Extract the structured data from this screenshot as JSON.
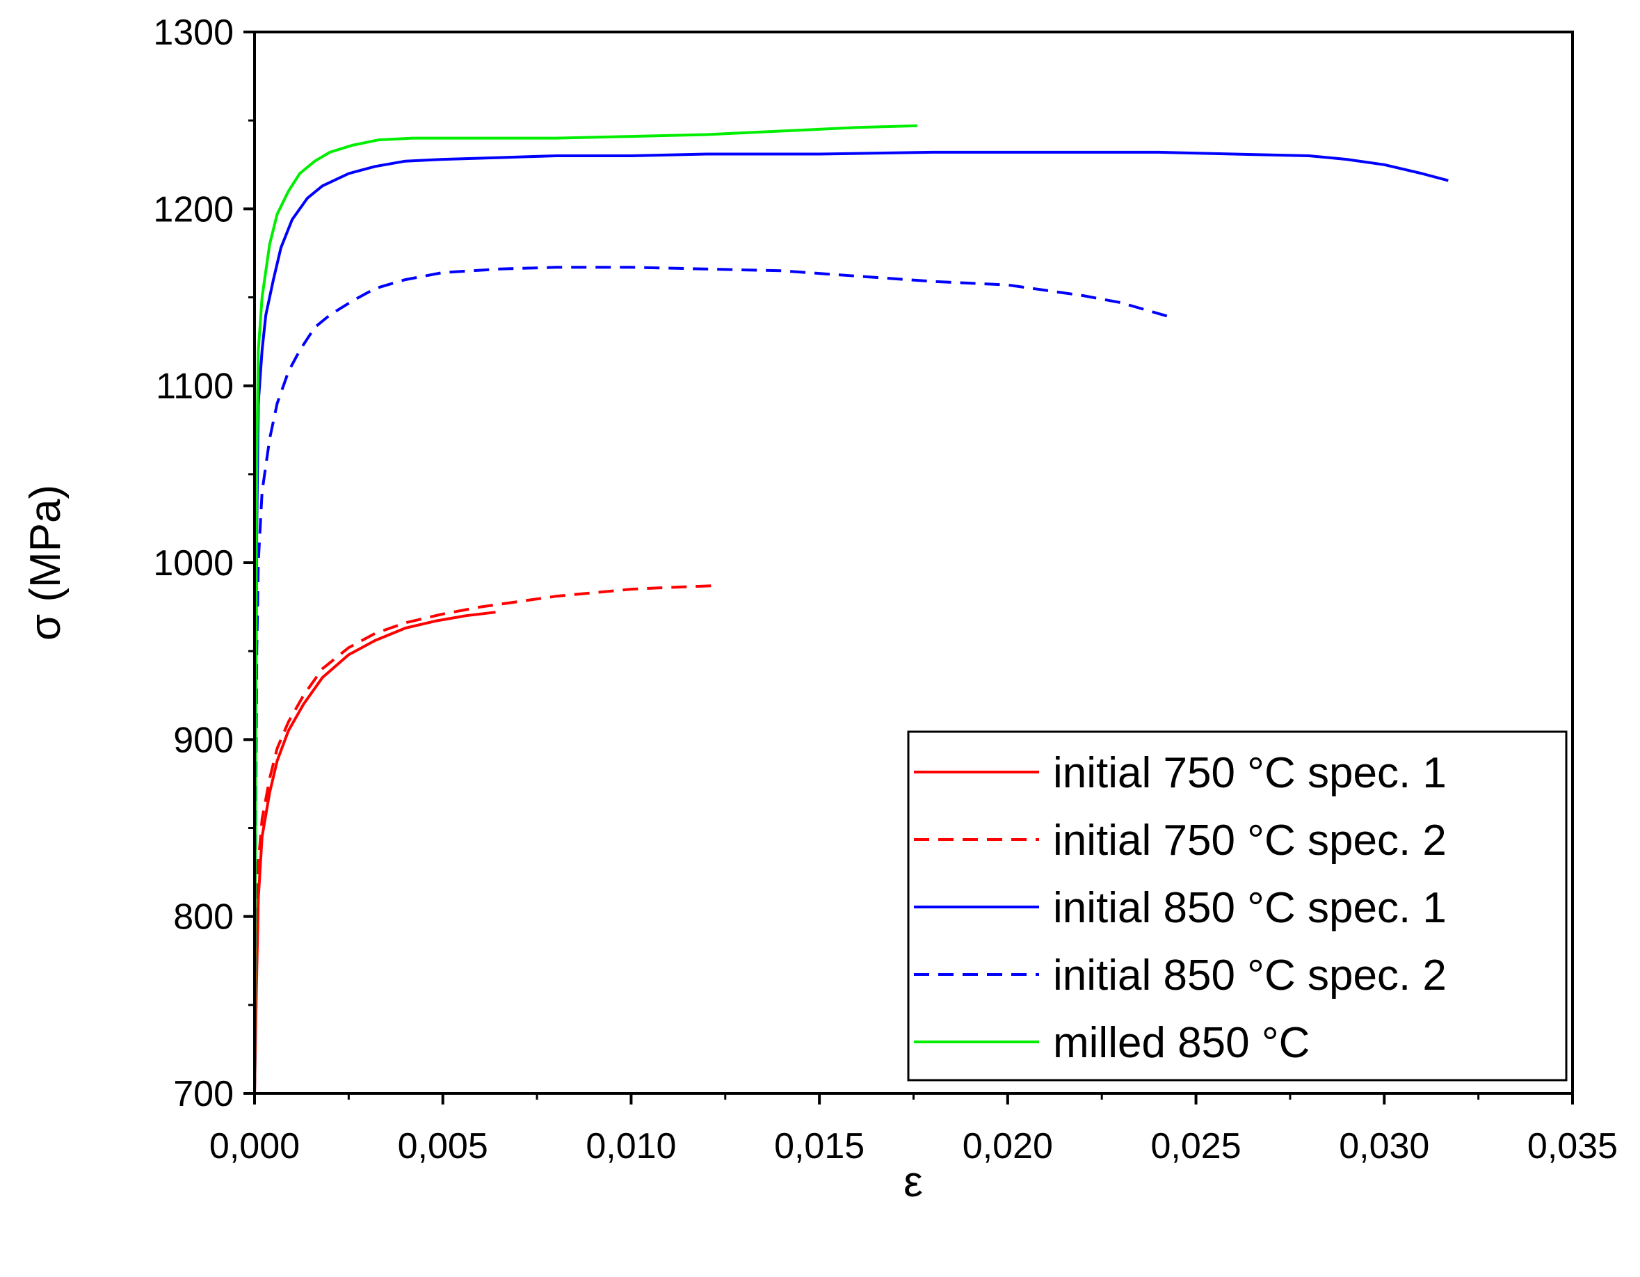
{
  "chart_data": {
    "type": "line",
    "title": "",
    "xlabel": "ε",
    "ylabel": "σ (MPa)",
    "xlim": [
      0,
      0.035
    ],
    "ylim": [
      700,
      1300
    ],
    "x_ticks": [
      0,
      0.005,
      0.01,
      0.015,
      0.02,
      0.025,
      0.03,
      0.035
    ],
    "x_tick_labels": [
      "0,000",
      "0,005",
      "0,010",
      "0,015",
      "0,020",
      "0,025",
      "0,030",
      "0,035"
    ],
    "y_ticks": [
      700,
      800,
      900,
      1000,
      1100,
      1200,
      1300
    ],
    "y_tick_labels": [
      "700",
      "800",
      "900",
      "1000",
      "1100",
      "1200",
      "1300"
    ],
    "grid": false,
    "legend_position": "bottom-right",
    "series": [
      {
        "name": "initial 750 °C spec. 1",
        "color": "#ff0000",
        "dash": "solid",
        "points": [
          [
            0,
            700
          ],
          [
            5e-05,
            760
          ],
          [
            0.0001,
            810
          ],
          [
            0.0002,
            845
          ],
          [
            0.0004,
            870
          ],
          [
            0.0006,
            888
          ],
          [
            0.0009,
            905
          ],
          [
            0.0013,
            920
          ],
          [
            0.0018,
            935
          ],
          [
            0.0025,
            948
          ],
          [
            0.0032,
            956
          ],
          [
            0.004,
            963
          ],
          [
            0.0048,
            967
          ],
          [
            0.0056,
            970
          ],
          [
            0.0064,
            972
          ]
        ]
      },
      {
        "name": "initial 750 °C spec. 2",
        "color": "#ff0000",
        "dash": "dashed",
        "points": [
          [
            0,
            700
          ],
          [
            5e-05,
            780
          ],
          [
            0.0001,
            830
          ],
          [
            0.0002,
            855
          ],
          [
            0.0004,
            878
          ],
          [
            0.0006,
            895
          ],
          [
            0.0009,
            910
          ],
          [
            0.0013,
            925
          ],
          [
            0.0018,
            940
          ],
          [
            0.0025,
            952
          ],
          [
            0.0032,
            960
          ],
          [
            0.004,
            966
          ],
          [
            0.005,
            971
          ],
          [
            0.006,
            975
          ],
          [
            0.007,
            978
          ],
          [
            0.008,
            981
          ],
          [
            0.009,
            983
          ],
          [
            0.01,
            985
          ],
          [
            0.011,
            986
          ],
          [
            0.0122,
            987
          ]
        ]
      },
      {
        "name": "initial 850 °C spec. 1",
        "color": "#0000ff",
        "dash": "solid",
        "points": [
          [
            0,
            700
          ],
          [
            3e-05,
            900
          ],
          [
            6e-05,
            1020
          ],
          [
            0.0001,
            1090
          ],
          [
            0.0002,
            1120
          ],
          [
            0.0003,
            1140
          ],
          [
            0.0005,
            1160
          ],
          [
            0.0007,
            1178
          ],
          [
            0.001,
            1194
          ],
          [
            0.0014,
            1206
          ],
          [
            0.0018,
            1213
          ],
          [
            0.0025,
            1220
          ],
          [
            0.0032,
            1224
          ],
          [
            0.004,
            1227
          ],
          [
            0.005,
            1228
          ],
          [
            0.0065,
            1229
          ],
          [
            0.008,
            1230
          ],
          [
            0.01,
            1230
          ],
          [
            0.012,
            1231
          ],
          [
            0.015,
            1231
          ],
          [
            0.018,
            1232
          ],
          [
            0.021,
            1232
          ],
          [
            0.024,
            1232
          ],
          [
            0.026,
            1231
          ],
          [
            0.028,
            1230
          ],
          [
            0.029,
            1228
          ],
          [
            0.03,
            1225
          ],
          [
            0.031,
            1220
          ],
          [
            0.0317,
            1216
          ]
        ]
      },
      {
        "name": "initial 850 °C spec. 2",
        "color": "#0000ff",
        "dash": "dashed",
        "points": [
          [
            0,
            700
          ],
          [
            3e-05,
            850
          ],
          [
            6e-05,
            950
          ],
          [
            0.0001,
            1000
          ],
          [
            0.0002,
            1040
          ],
          [
            0.0004,
            1070
          ],
          [
            0.0006,
            1090
          ],
          [
            0.0009,
            1108
          ],
          [
            0.0012,
            1120
          ],
          [
            0.0016,
            1133
          ],
          [
            0.002,
            1140
          ],
          [
            0.0026,
            1148
          ],
          [
            0.0032,
            1155
          ],
          [
            0.004,
            1160
          ],
          [
            0.005,
            1164
          ],
          [
            0.0065,
            1166
          ],
          [
            0.008,
            1167
          ],
          [
            0.01,
            1167
          ],
          [
            0.012,
            1166
          ],
          [
            0.014,
            1165
          ],
          [
            0.016,
            1162
          ],
          [
            0.018,
            1159
          ],
          [
            0.02,
            1157
          ],
          [
            0.022,
            1151
          ],
          [
            0.023,
            1147
          ],
          [
            0.0243,
            1139
          ]
        ]
      },
      {
        "name": "milled 850 °C",
        "color": "#00ee00",
        "dash": "solid",
        "points": [
          [
            0,
            700
          ],
          [
            3e-05,
            920
          ],
          [
            6e-05,
            1060
          ],
          [
            0.0001,
            1120
          ],
          [
            0.0002,
            1150
          ],
          [
            0.0004,
            1180
          ],
          [
            0.0006,
            1197
          ],
          [
            0.0009,
            1210
          ],
          [
            0.0012,
            1220
          ],
          [
            0.0016,
            1227
          ],
          [
            0.002,
            1232
          ],
          [
            0.0026,
            1236
          ],
          [
            0.0033,
            1239
          ],
          [
            0.0042,
            1240
          ],
          [
            0.006,
            1240
          ],
          [
            0.008,
            1240
          ],
          [
            0.01,
            1241
          ],
          [
            0.012,
            1242
          ],
          [
            0.014,
            1244
          ],
          [
            0.016,
            1246
          ],
          [
            0.0176,
            1247
          ]
        ]
      }
    ]
  }
}
